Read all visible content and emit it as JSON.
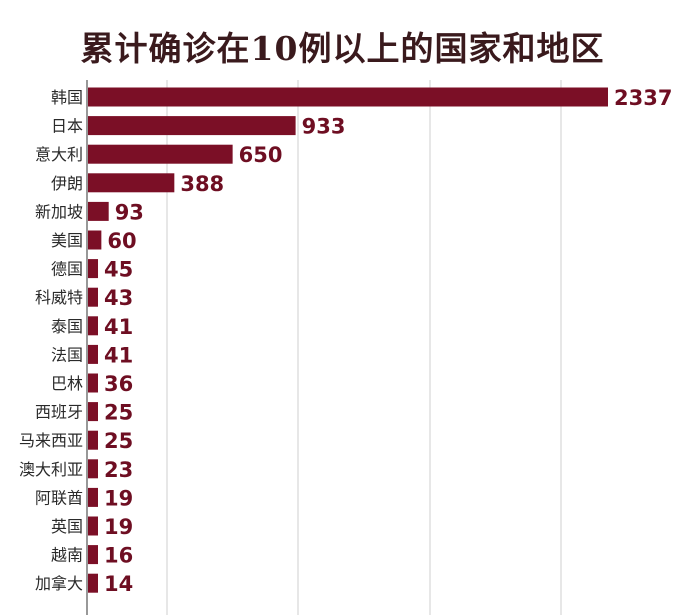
{
  "chart_data": {
    "type": "bar",
    "orientation": "horizontal",
    "title": "累计确诊在10例以上的国家和地区",
    "categories": [
      "韩国",
      "日本",
      "意大利",
      "伊朗",
      "新加坡",
      "美国",
      "德国",
      "科威特",
      "泰国",
      "法国",
      "巴林",
      "西班牙",
      "马来西亚",
      "澳大利亚",
      "阿联酋",
      "英国",
      "越南",
      "加拿大"
    ],
    "values": [
      2337,
      933,
      650,
      388,
      93,
      60,
      45,
      43,
      41,
      41,
      36,
      25,
      25,
      23,
      19,
      19,
      16,
      14
    ],
    "bar_color": "#7b0f26",
    "label_color": "#6e0e22",
    "grid": true,
    "legend": "none"
  }
}
